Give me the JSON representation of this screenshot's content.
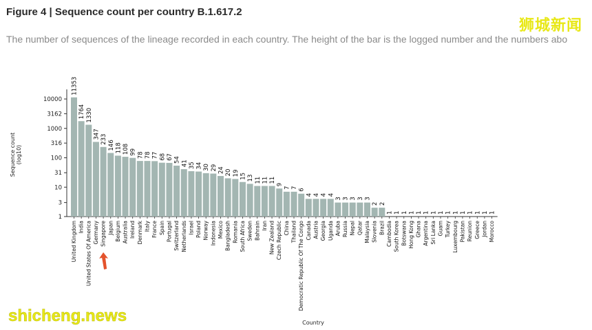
{
  "figure": {
    "title": "Figure 4 | Sequence count per country B.1.617.2",
    "subtitle": "The number of sequences of the lineage recorded in each country. The height of the bar is the logged number and the numbers abo"
  },
  "watermarks": {
    "top_right": "狮城新闻",
    "bottom_left": "shicheng.news"
  },
  "colors": {
    "bar": "#a3b6b2",
    "axis": "#333333",
    "highlight_arrow": "#e4532c",
    "watermark": "#e8e817"
  },
  "chart_data": {
    "type": "bar",
    "scale": "log10",
    "xlabel": "Country",
    "ylabel": "Sequence count (log10)",
    "ylim": [
      1,
      10000
    ],
    "yticks": [
      {
        "value": 1,
        "label": "1"
      },
      {
        "value": 3,
        "label": "3"
      },
      {
        "value": 10,
        "label": "10"
      },
      {
        "value": 31,
        "label": "31"
      },
      {
        "value": 100,
        "label": "100"
      },
      {
        "value": 316,
        "label": "316"
      },
      {
        "value": 1000,
        "label": "1000"
      },
      {
        "value": 3162,
        "label": "3162"
      },
      {
        "value": 10000,
        "label": "10000"
      }
    ],
    "grid": false,
    "highlight_category": "Singapore",
    "categories": [
      "United Kingdom",
      "India",
      "United States Of America",
      "Germany",
      "Singapore",
      "Japan",
      "Belgium",
      "Australia",
      "Ireland",
      "Denmark",
      "Italy",
      "France",
      "Spain",
      "Portugal",
      "Switzerland",
      "Netherlands",
      "Israel",
      "Poland",
      "Norway",
      "Indonesia",
      "Mexico",
      "Bangladesh",
      "Romania",
      "South Africa",
      "Sweden",
      "Bahrain",
      "Iran",
      "New Zealand",
      "Czech Republic",
      "China",
      "Thailand",
      "Democratic Republic Of The Congo",
      "Canada",
      "Austria",
      "Georgia",
      "Uganda",
      "Aruba",
      "Russia",
      "Nepal",
      "Qatar",
      "Malaysia",
      "Slovenia",
      "Brazil",
      "Cambodia",
      "South Korea",
      "Botswana",
      "Hong Kong",
      "Ghana",
      "Argentina",
      "Sri Lanka",
      "Guam",
      "Turkey",
      "Luxembourg",
      "Pakistan",
      "Reunion",
      "Greece",
      "Jordan",
      "Morocco"
    ],
    "values": [
      11353,
      1764,
      1330,
      347,
      233,
      146,
      118,
      108,
      99,
      78,
      78,
      77,
      68,
      67,
      54,
      41,
      35,
      34,
      30,
      29,
      24,
      20,
      19,
      15,
      13,
      11,
      11,
      11,
      9,
      7,
      7,
      6,
      4,
      4,
      4,
      4,
      3,
      3,
      3,
      3,
      3,
      2,
      2,
      1,
      1,
      1,
      1,
      1,
      1,
      1,
      1,
      1,
      1,
      1,
      1,
      1,
      1,
      1
    ],
    "labels": [
      "11353",
      "1764",
      "1330",
      "347",
      "233",
      "146",
      "118",
      "108",
      "99",
      "78",
      "78",
      "77",
      "68",
      "67",
      "54",
      "41",
      "35",
      "34",
      "30",
      "29",
      "24",
      "20",
      "19",
      "15",
      "13",
      "11",
      "11",
      "11",
      "9",
      "7",
      "7",
      "6",
      "4",
      "4",
      "4",
      "4",
      "3",
      "3",
      "3",
      "3",
      "3",
      "2",
      "2",
      "1",
      "1",
      "1",
      "1",
      "1",
      "1",
      "1",
      "1",
      "1",
      "1",
      "1",
      "1",
      "1",
      "1",
      "1"
    ]
  }
}
